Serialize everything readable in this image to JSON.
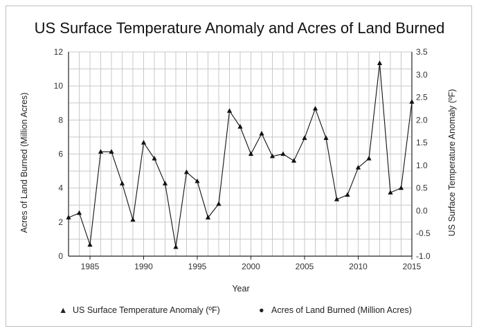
{
  "chart_data": {
    "type": "line",
    "title": "US Surface Temperature Anomaly and Acres of Land Burned",
    "xlabel": "Year",
    "ylabel_left": "Acres of Land Burned (Million Acres)",
    "ylabel_right": "US Surface Temperature Anomaly (ºF)",
    "xlim": [
      1983,
      2015
    ],
    "ylim_left": [
      0,
      12
    ],
    "ylim_right": [
      -1.0,
      3.5
    ],
    "x_ticks": [
      "1985",
      "1990",
      "1995",
      "2000",
      "2005",
      "2010",
      "2015"
    ],
    "x_tick_values": [
      1985,
      1990,
      1995,
      2000,
      2005,
      2010,
      2015
    ],
    "y_left_ticks": [
      "0",
      "2",
      "4",
      "6",
      "8",
      "10",
      "12"
    ],
    "y_left_tick_values": [
      0,
      2,
      4,
      6,
      8,
      10,
      12
    ],
    "y_right_ticks": [
      "-1.0",
      "-0.5",
      "0.0",
      "0.5",
      "1.0",
      "1.5",
      "2.0",
      "2.5",
      "3.0",
      "3.5"
    ],
    "y_right_tick_values": [
      -1.0,
      -0.5,
      0.0,
      0.5,
      1.0,
      1.5,
      2.0,
      2.5,
      3.0,
      3.5
    ],
    "grid": true,
    "legend_position": "bottom",
    "series": [
      {
        "name": "US Surface Temperature Anomaly (ºF)",
        "axis": "right",
        "marker": "triangle",
        "x": [
          1983,
          1984,
          1985,
          1986,
          1987,
          1988,
          1989,
          1990,
          1991,
          1992,
          1993,
          1994,
          1995,
          1996,
          1997,
          1998,
          1999,
          2000,
          2001,
          2002,
          2003,
          2004,
          2005,
          2006,
          2007,
          2008,
          2009,
          2010,
          2011,
          2012,
          2013,
          2014,
          2015
        ],
        "values": [
          -0.15,
          -0.05,
          -0.75,
          1.3,
          1.3,
          0.6,
          -0.2,
          1.5,
          1.15,
          0.6,
          -0.8,
          0.85,
          0.65,
          -0.15,
          0.15,
          2.2,
          1.85,
          1.25,
          1.7,
          1.2,
          1.25,
          1.1,
          1.6,
          2.25,
          1.6,
          0.25,
          0.35,
          0.95,
          1.15,
          3.25,
          0.4,
          0.5,
          2.4
        ]
      },
      {
        "name": "Acres of Land Burned (Million Acres)",
        "axis": "left",
        "marker": "dot",
        "x": [],
        "values": []
      }
    ],
    "legend": [
      {
        "label": "US Surface Temperature Anomaly (ºF)",
        "symbol": "▲"
      },
      {
        "label": "Acres of Land Burned (Million Acres)",
        "symbol": "●"
      }
    ]
  }
}
